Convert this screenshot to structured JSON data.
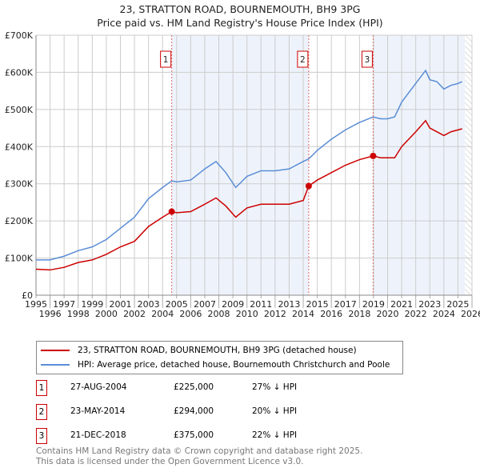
{
  "chart_data": {
    "type": "line",
    "title": "23, STRATTON ROAD, BOURNEMOUTH, BH9 3PG",
    "subtitle": "Price paid vs. HM Land Registry's House Price Index (HPI)",
    "xlim": [
      1995,
      2026
    ],
    "ylim": [
      0,
      700000
    ],
    "x_ticks": [
      "1995",
      "1996",
      "1997",
      "1998",
      "1999",
      "2000",
      "2001",
      "2002",
      "2003",
      "2004",
      "2005",
      "2006",
      "2007",
      "2008",
      "2009",
      "2010",
      "2011",
      "2012",
      "2013",
      "2014",
      "2015",
      "2016",
      "2017",
      "2018",
      "2019",
      "2020",
      "2021",
      "2022",
      "2023",
      "2024",
      "2025",
      "2026"
    ],
    "y_ticks": [
      {
        "v": 0,
        "l": "£0"
      },
      {
        "v": 100000,
        "l": "£100K"
      },
      {
        "v": 200000,
        "l": "£200K"
      },
      {
        "v": 300000,
        "l": "£300K"
      },
      {
        "v": 400000,
        "l": "£400K"
      },
      {
        "v": 500000,
        "l": "£500K"
      },
      {
        "v": 600000,
        "l": "£600K"
      },
      {
        "v": 700000,
        "l": "£700K"
      }
    ],
    "grid": true,
    "series": [
      {
        "name": "23, STRATTON ROAD, BOURNEMOUTH, BH9 3PG (detached house)",
        "color": "#cc0000",
        "x": [
          1995,
          1996,
          1997,
          1998,
          1999,
          2000,
          2001,
          2002,
          2003,
          2004,
          2004.65,
          2005,
          2006,
          2007,
          2007.8,
          2008.5,
          2009.2,
          2010,
          2011,
          2012,
          2013,
          2014,
          2014.39,
          2015,
          2016,
          2017,
          2018,
          2018.97,
          2019.5,
          2020,
          2020.5,
          2021,
          2022,
          2022.7,
          2023,
          2023.5,
          2024,
          2024.5,
          2025,
          2025.3
        ],
        "y": [
          70000,
          68000,
          75000,
          88000,
          95000,
          110000,
          130000,
          145000,
          185000,
          210000,
          225000,
          222000,
          225000,
          245000,
          262000,
          240000,
          210000,
          235000,
          245000,
          245000,
          245000,
          255000,
          294000,
          310000,
          330000,
          350000,
          365000,
          375000,
          370000,
          370000,
          370000,
          400000,
          440000,
          470000,
          450000,
          440000,
          430000,
          440000,
          445000,
          448000
        ]
      },
      {
        "name": "HPI: Average price, detached house, Bournemouth Christchurch and Poole",
        "color": "#5b8dd6",
        "x": [
          1995,
          1996,
          1997,
          1998,
          1999,
          2000,
          2001,
          2002,
          2003,
          2004,
          2004.65,
          2005,
          2006,
          2007,
          2007.8,
          2008.5,
          2009.2,
          2010,
          2011,
          2012,
          2013,
          2014,
          2014.39,
          2015,
          2016,
          2017,
          2018,
          2018.97,
          2019.5,
          2020,
          2020.5,
          2021,
          2022,
          2022.7,
          2023,
          2023.5,
          2024,
          2024.5,
          2025,
          2025.3
        ],
        "y": [
          95000,
          95000,
          105000,
          120000,
          130000,
          150000,
          180000,
          210000,
          260000,
          290000,
          308000,
          305000,
          310000,
          340000,
          360000,
          330000,
          290000,
          320000,
          335000,
          335000,
          340000,
          360000,
          367000,
          390000,
          420000,
          445000,
          465000,
          480000,
          475000,
          475000,
          480000,
          520000,
          570000,
          605000,
          580000,
          575000,
          555000,
          565000,
          570000,
          575000
        ]
      }
    ],
    "sales": [
      {
        "n": "1",
        "x": 2004.65,
        "date": "27-AUG-2004",
        "price": "£225,000",
        "value": 225000,
        "hpi": "27% ↓ HPI"
      },
      {
        "n": "2",
        "x": 2014.39,
        "date": "23-MAY-2014",
        "price": "£294,000",
        "value": 294000,
        "hpi": "20% ↓ HPI"
      },
      {
        "n": "3",
        "x": 2018.97,
        "date": "21-DEC-2018",
        "price": "£375,000",
        "value": 375000,
        "hpi": "22% ↓ HPI"
      }
    ],
    "shaded_ranges": [
      [
        2004.65,
        2014.39
      ],
      [
        2018.97,
        2025.5
      ]
    ],
    "hatched_from": 2025.5,
    "legend_placement": "below"
  },
  "footer": {
    "line1": "Contains HM Land Registry data © Crown copyright and database right 2025.",
    "line2": "This data is licensed under the Open Government Licence v3.0."
  }
}
